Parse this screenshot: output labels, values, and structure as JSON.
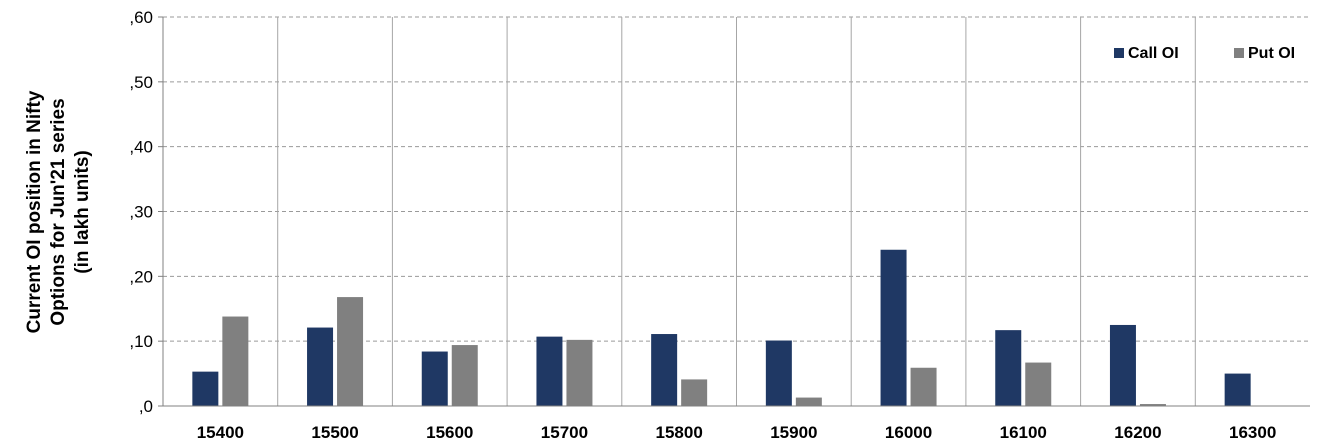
{
  "chart_data": {
    "type": "bar",
    "title": "",
    "xlabel": "",
    "ylabel_lines": [
      "Current OI position in Nifty",
      "Options for Jun'21 series",
      "(in lakh units)"
    ],
    "categories": [
      "15400",
      "15500",
      "15600",
      "15700",
      "15800",
      "15900",
      "16000",
      "16100",
      "16200",
      "16300"
    ],
    "series": [
      {
        "name": "Call OI",
        "color": "#1f3864",
        "values": [
          0.053,
          0.121,
          0.084,
          0.107,
          0.111,
          0.101,
          0.241,
          0.117,
          0.125,
          0.05
        ]
      },
      {
        "name": "Put OI",
        "color": "#808080",
        "values": [
          0.138,
          0.168,
          0.094,
          0.102,
          0.041,
          0.013,
          0.059,
          0.067,
          0.003,
          0
        ]
      }
    ],
    "ylim": [
      0,
      0.6
    ],
    "yticks": [
      0,
      0.1,
      0.2,
      0.3,
      0.4,
      0.5,
      0.6
    ],
    "ytick_labels": [
      ",0",
      ",10",
      ",20",
      ",30",
      ",40",
      ",50",
      ",60"
    ],
    "grid": true,
    "legend_position": "top-right"
  }
}
